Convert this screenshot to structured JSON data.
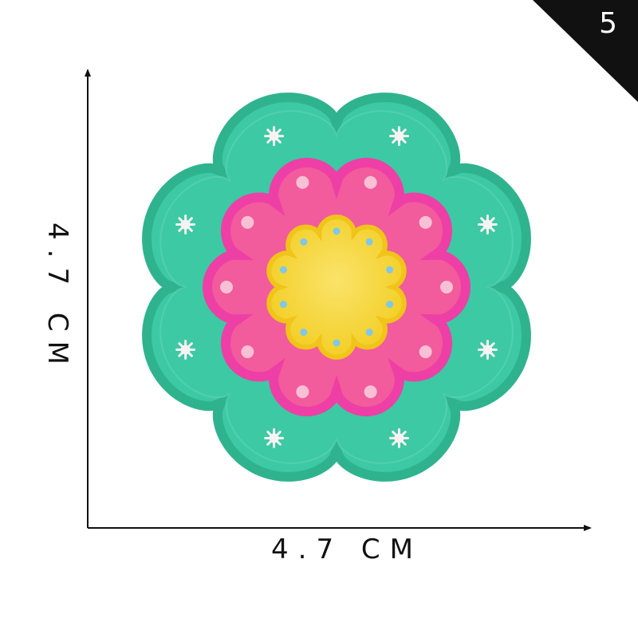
{
  "corner_number": "5",
  "width_label": "4.7 CM",
  "height_label": "4.7 CM",
  "colors": {
    "outer_green": "#3dc9a4",
    "outer_border": "#2fb38f",
    "pink_ring": "#f25b9c",
    "pink_border": "#ee3fa6",
    "yellow_center": "#f6d630",
    "dot_white": "#f7f3f2",
    "dot_blue": "#7ec8e8",
    "dot_pink": "#f7c0d4"
  }
}
